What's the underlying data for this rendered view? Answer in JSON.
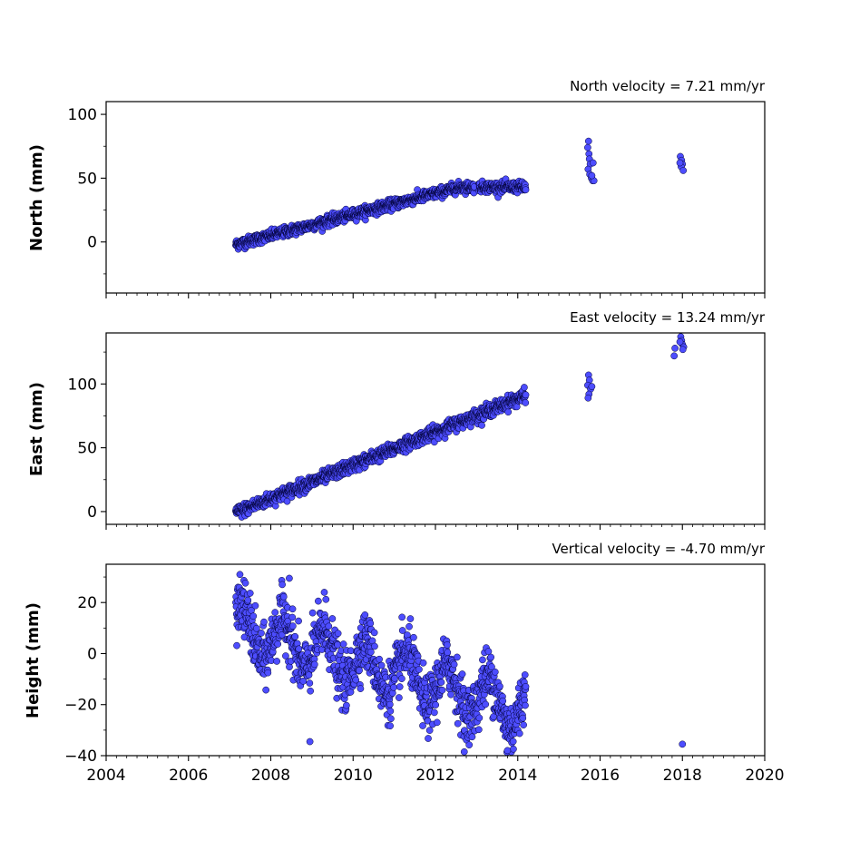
{
  "chart_data": [
    {
      "type": "scatter",
      "title": "North velocity = 7.21 mm/yr",
      "ylabel": "North (mm)",
      "xlabel": "",
      "xlim": [
        2004,
        2020
      ],
      "ylim": [
        -40,
        110
      ],
      "yticks": [
        0,
        50,
        100
      ],
      "show_x_tick_labels": false,
      "marker_color": "#4d4dff",
      "marker_edge": "#000033",
      "trend": {
        "x_start": 2007.15,
        "x_end": 2014.2,
        "y_start": -2,
        "y_end": 43,
        "bend_x": 2012.6,
        "y_at_bend": 43,
        "noise": 2.0
      },
      "extra_points": [
        {
          "x": 2015.72,
          "y": 79
        },
        {
          "x": 2015.7,
          "y": 74
        },
        {
          "x": 2015.73,
          "y": 69
        },
        {
          "x": 2015.74,
          "y": 65
        },
        {
          "x": 2015.76,
          "y": 61
        },
        {
          "x": 2015.71,
          "y": 57
        },
        {
          "x": 2015.75,
          "y": 53
        },
        {
          "x": 2015.79,
          "y": 50
        },
        {
          "x": 2015.82,
          "y": 48
        },
        {
          "x": 2015.85,
          "y": 48
        },
        {
          "x": 2015.8,
          "y": 52
        },
        {
          "x": 2015.83,
          "y": 62
        },
        {
          "x": 2017.95,
          "y": 67
        },
        {
          "x": 2017.98,
          "y": 64
        },
        {
          "x": 2018.0,
          "y": 61
        },
        {
          "x": 2017.97,
          "y": 59
        },
        {
          "x": 2018.02,
          "y": 56
        },
        {
          "x": 2017.94,
          "y": 62
        }
      ]
    },
    {
      "type": "scatter",
      "title": "East velocity = 13.24 mm/yr",
      "ylabel": "East (mm)",
      "xlabel": "",
      "xlim": [
        2004,
        2020
      ],
      "ylim": [
        -10,
        140
      ],
      "yticks": [
        0,
        50,
        100
      ],
      "show_x_tick_labels": false,
      "marker_color": "#4d4dff",
      "marker_edge": "#000033",
      "trend": {
        "x_start": 2007.15,
        "x_end": 2014.2,
        "y_start": -1,
        "y_end": 91,
        "noise": 2.5
      },
      "extra_points": [
        {
          "x": 2015.72,
          "y": 107
        },
        {
          "x": 2015.74,
          "y": 103
        },
        {
          "x": 2015.7,
          "y": 99
        },
        {
          "x": 2015.77,
          "y": 96
        },
        {
          "x": 2015.73,
          "y": 92
        },
        {
          "x": 2015.71,
          "y": 89
        },
        {
          "x": 2015.8,
          "y": 98
        },
        {
          "x": 2017.8,
          "y": 122
        },
        {
          "x": 2017.82,
          "y": 128
        },
        {
          "x": 2017.96,
          "y": 137
        },
        {
          "x": 2017.98,
          "y": 134
        },
        {
          "x": 2018.0,
          "y": 131
        },
        {
          "x": 2018.03,
          "y": 129
        },
        {
          "x": 2017.94,
          "y": 133
        },
        {
          "x": 2018.01,
          "y": 127
        }
      ]
    },
    {
      "type": "scatter",
      "title": "Vertical velocity = -4.70 mm/yr",
      "ylabel": "Height (mm)",
      "xlabel": "",
      "xlim": [
        2004,
        2020
      ],
      "ylim": [
        -40,
        35
      ],
      "yticks": [
        -40,
        -20,
        0,
        20
      ],
      "xticks": [
        2004,
        2006,
        2008,
        2010,
        2012,
        2014,
        2016,
        2018,
        2020
      ],
      "show_x_tick_labels": true,
      "marker_color": "#4d4dff",
      "marker_edge": "#000033",
      "trend": {
        "x_start": 2007.15,
        "x_end": 2014.2,
        "y_start": 10,
        "y_end": -22,
        "seasonal_amplitude": 9,
        "noise": 5.5
      },
      "extra_points": [
        {
          "x": 2018.0,
          "y": -35.5
        },
        {
          "x": 2008.95,
          "y": -34.5
        },
        {
          "x": 2007.25,
          "y": 31
        },
        {
          "x": 2008.45,
          "y": 29.5
        },
        {
          "x": 2009.3,
          "y": 24
        },
        {
          "x": 2012.7,
          "y": -38.5
        },
        {
          "x": 2013.75,
          "y": -38
        }
      ]
    }
  ]
}
